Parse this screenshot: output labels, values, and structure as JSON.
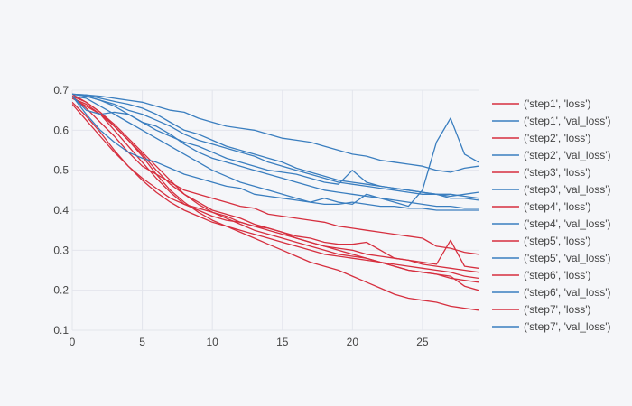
{
  "chart_data": {
    "type": "line",
    "title": "",
    "xlabel": "",
    "ylabel": "",
    "xlim": [
      0,
      29
    ],
    "ylim": [
      0.1,
      0.7
    ],
    "x_ticks": [
      0,
      5,
      10,
      15,
      20,
      25
    ],
    "y_ticks": [
      0.1,
      0.2,
      0.3,
      0.4,
      0.5,
      0.6,
      0.7
    ],
    "grid": true,
    "legend_position": "right",
    "colors": {
      "loss": "#d62f3f",
      "val_loss": "#3a7ebf"
    },
    "x": [
      0,
      1,
      2,
      3,
      4,
      5,
      6,
      7,
      8,
      9,
      10,
      11,
      12,
      13,
      14,
      15,
      16,
      17,
      18,
      19,
      20,
      21,
      22,
      23,
      24,
      25,
      26,
      27,
      28,
      29
    ],
    "series": [
      {
        "name": "('step1', 'loss')",
        "kind": "loss",
        "values": [
          0.685,
          0.655,
          0.62,
          0.585,
          0.545,
          0.51,
          0.49,
          0.47,
          0.45,
          0.44,
          0.43,
          0.42,
          0.41,
          0.405,
          0.39,
          0.385,
          0.38,
          0.375,
          0.37,
          0.36,
          0.355,
          0.35,
          0.345,
          0.34,
          0.335,
          0.33,
          0.31,
          0.305,
          0.295,
          0.29
        ]
      },
      {
        "name": "('step1', 'val_loss')",
        "kind": "val_loss",
        "values": [
          0.69,
          0.688,
          0.685,
          0.68,
          0.675,
          0.67,
          0.66,
          0.65,
          0.645,
          0.63,
          0.62,
          0.61,
          0.605,
          0.6,
          0.59,
          0.58,
          0.575,
          0.57,
          0.56,
          0.55,
          0.54,
          0.535,
          0.525,
          0.52,
          0.515,
          0.51,
          0.5,
          0.495,
          0.505,
          0.51
        ]
      },
      {
        "name": "('step2', 'loss')",
        "kind": "loss",
        "values": [
          0.68,
          0.66,
          0.64,
          0.6,
          0.56,
          0.52,
          0.48,
          0.445,
          0.415,
          0.4,
          0.385,
          0.375,
          0.37,
          0.36,
          0.355,
          0.345,
          0.335,
          0.33,
          0.32,
          0.315,
          0.315,
          0.32,
          0.3,
          0.28,
          0.275,
          0.27,
          0.265,
          0.325,
          0.26,
          0.255
        ]
      },
      {
        "name": "('step2', 'val_loss')",
        "kind": "val_loss",
        "values": [
          0.69,
          0.688,
          0.68,
          0.672,
          0.665,
          0.655,
          0.64,
          0.62,
          0.6,
          0.59,
          0.575,
          0.56,
          0.55,
          0.54,
          0.53,
          0.52,
          0.505,
          0.495,
          0.485,
          0.475,
          0.47,
          0.465,
          0.46,
          0.455,
          0.45,
          0.445,
          0.44,
          0.44,
          0.435,
          0.43
        ]
      },
      {
        "name": "('step3', 'loss')",
        "kind": "loss",
        "values": [
          0.68,
          0.665,
          0.64,
          0.61,
          0.575,
          0.54,
          0.5,
          0.465,
          0.44,
          0.42,
          0.4,
          0.39,
          0.38,
          0.365,
          0.355,
          0.345,
          0.33,
          0.32,
          0.31,
          0.305,
          0.3,
          0.29,
          0.285,
          0.28,
          0.275,
          0.265,
          0.26,
          0.255,
          0.25,
          0.245
        ]
      },
      {
        "name": "('step3', 'val_loss')",
        "kind": "val_loss",
        "values": [
          0.69,
          0.685,
          0.675,
          0.665,
          0.65,
          0.64,
          0.625,
          0.61,
          0.59,
          0.575,
          0.565,
          0.555,
          0.545,
          0.535,
          0.52,
          0.51,
          0.5,
          0.49,
          0.48,
          0.47,
          0.465,
          0.46,
          0.455,
          0.45,
          0.445,
          0.44,
          0.44,
          0.43,
          0.43,
          0.425
        ]
      },
      {
        "name": "('step4', 'loss')",
        "kind": "loss",
        "values": [
          0.69,
          0.67,
          0.645,
          0.615,
          0.58,
          0.545,
          0.51,
          0.475,
          0.44,
          0.415,
          0.395,
          0.38,
          0.365,
          0.35,
          0.34,
          0.33,
          0.32,
          0.31,
          0.3,
          0.29,
          0.285,
          0.28,
          0.27,
          0.265,
          0.26,
          0.255,
          0.25,
          0.245,
          0.235,
          0.23
        ]
      },
      {
        "name": "('step4', 'val_loss')",
        "kind": "val_loss",
        "values": [
          0.685,
          0.65,
          0.64,
          0.645,
          0.64,
          0.62,
          0.61,
          0.59,
          0.565,
          0.545,
          0.53,
          0.52,
          0.51,
          0.5,
          0.49,
          0.48,
          0.47,
          0.46,
          0.45,
          0.445,
          0.44,
          0.435,
          0.43,
          0.425,
          0.42,
          0.415,
          0.41,
          0.41,
          0.405,
          0.405
        ]
      },
      {
        "name": "('step5', 'loss')",
        "kind": "loss",
        "values": [
          0.67,
          0.635,
          0.595,
          0.55,
          0.51,
          0.475,
          0.445,
          0.42,
          0.4,
          0.385,
          0.37,
          0.36,
          0.35,
          0.34,
          0.33,
          0.32,
          0.31,
          0.3,
          0.29,
          0.285,
          0.28,
          0.275,
          0.27,
          0.26,
          0.25,
          0.245,
          0.24,
          0.235,
          0.21,
          0.2
        ]
      },
      {
        "name": "('step5', 'val_loss')",
        "kind": "val_loss",
        "values": [
          0.685,
          0.64,
          0.6,
          0.57,
          0.545,
          0.53,
          0.52,
          0.505,
          0.49,
          0.48,
          0.47,
          0.46,
          0.455,
          0.44,
          0.435,
          0.43,
          0.425,
          0.42,
          0.415,
          0.415,
          0.42,
          0.415,
          0.41,
          0.41,
          0.405,
          0.405,
          0.4,
          0.4,
          0.4,
          0.4
        ]
      },
      {
        "name": "('step6', 'loss')",
        "kind": "loss",
        "values": [
          0.665,
          0.625,
          0.585,
          0.545,
          0.51,
          0.48,
          0.455,
          0.43,
          0.415,
          0.405,
          0.395,
          0.385,
          0.37,
          0.36,
          0.35,
          0.34,
          0.33,
          0.32,
          0.31,
          0.3,
          0.29,
          0.28,
          0.27,
          0.26,
          0.25,
          0.245,
          0.24,
          0.23,
          0.225,
          0.22
        ]
      },
      {
        "name": "('step6', 'val_loss')",
        "kind": "val_loss",
        "values": [
          0.685,
          0.68,
          0.66,
          0.64,
          0.62,
          0.6,
          0.58,
          0.56,
          0.54,
          0.52,
          0.5,
          0.485,
          0.47,
          0.46,
          0.45,
          0.44,
          0.43,
          0.42,
          0.43,
          0.42,
          0.415,
          0.44,
          0.43,
          0.42,
          0.41,
          0.45,
          0.57,
          0.63,
          0.54,
          0.52
        ]
      },
      {
        "name": "('step7', 'loss')",
        "kind": "loss",
        "values": [
          0.685,
          0.67,
          0.645,
          0.61,
          0.575,
          0.535,
          0.49,
          0.45,
          0.42,
          0.395,
          0.375,
          0.36,
          0.345,
          0.33,
          0.315,
          0.3,
          0.285,
          0.27,
          0.26,
          0.25,
          0.235,
          0.22,
          0.205,
          0.19,
          0.18,
          0.175,
          0.17,
          0.16,
          0.155,
          0.15
        ]
      },
      {
        "name": "('step7', 'val_loss')",
        "kind": "val_loss",
        "values": [
          0.69,
          0.685,
          0.675,
          0.66,
          0.64,
          0.62,
          0.6,
          0.585,
          0.57,
          0.56,
          0.545,
          0.53,
          0.52,
          0.51,
          0.5,
          0.495,
          0.49,
          0.48,
          0.47,
          0.465,
          0.5,
          0.47,
          0.46,
          0.455,
          0.45,
          0.445,
          0.44,
          0.435,
          0.44,
          0.445
        ]
      }
    ]
  }
}
